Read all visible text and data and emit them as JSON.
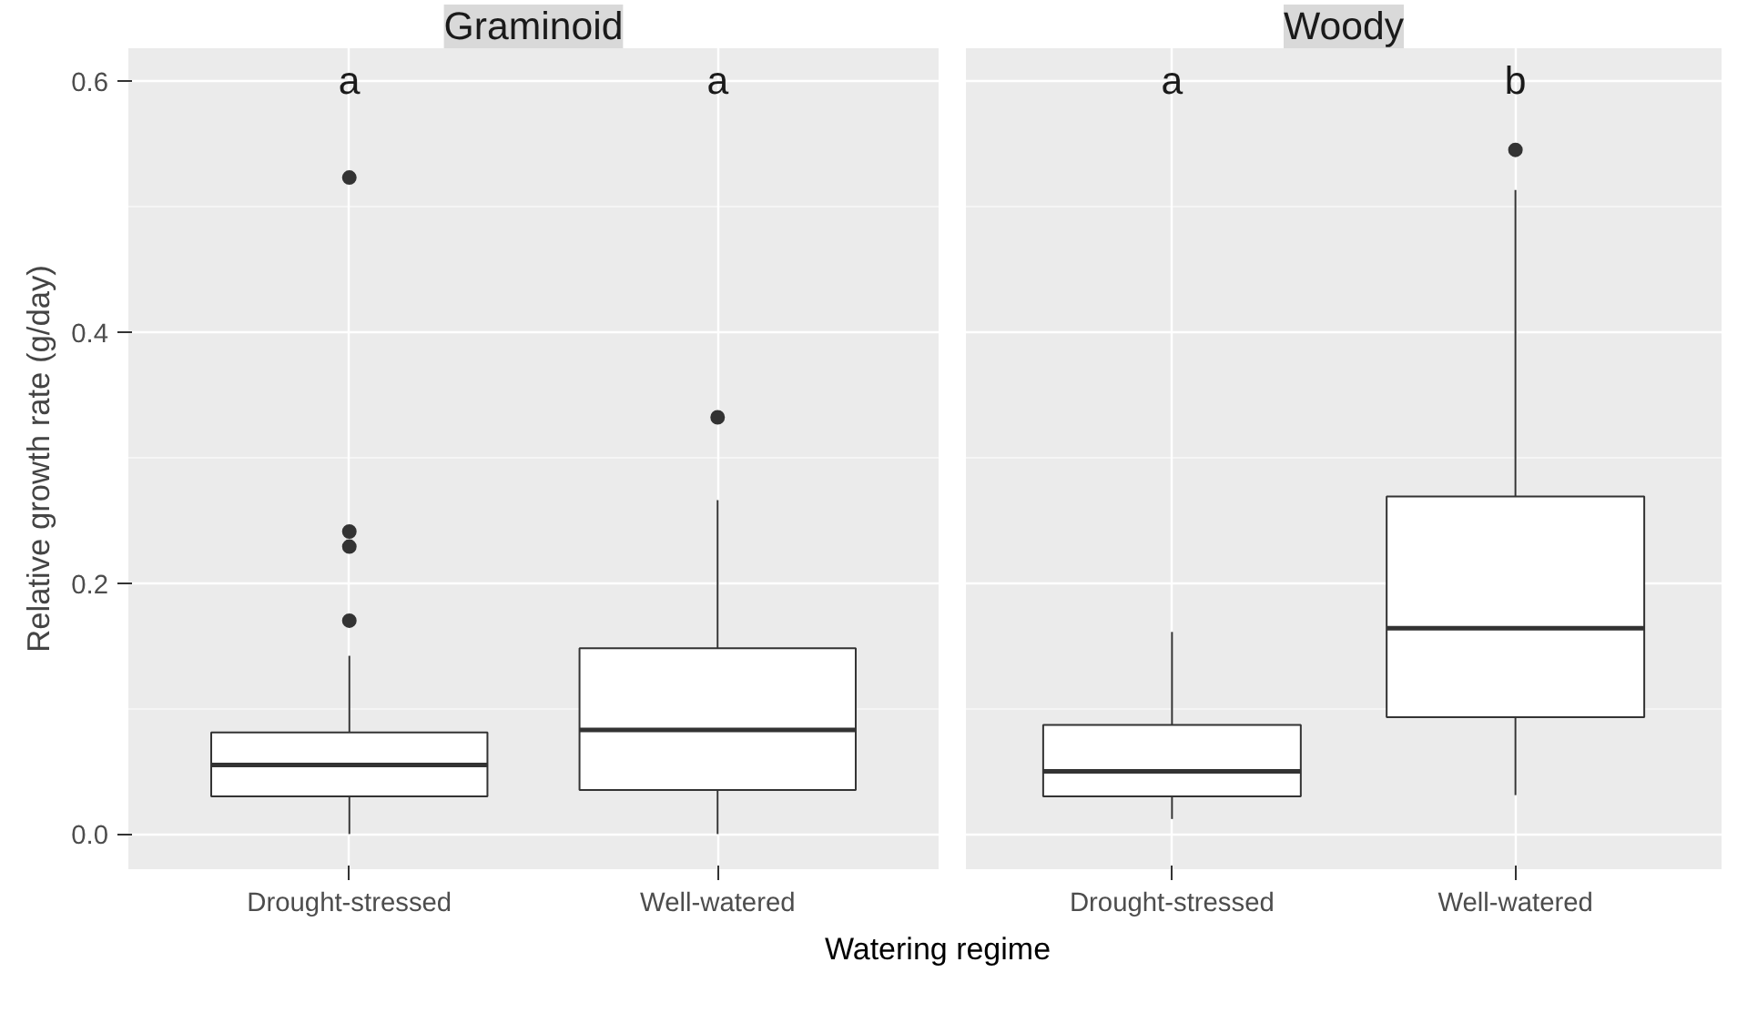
{
  "chart_data": [
    {
      "type": "box",
      "title": "Graminoid",
      "ylabel": "Relative growth rate (g/day)",
      "xlabel": "Watering regime",
      "categories": [
        "Drought-stressed",
        "Well-watered"
      ],
      "boxes": [
        {
          "low": 0.0,
          "q1": 0.03,
          "median": 0.055,
          "q3": 0.081,
          "high": 0.142,
          "outliers": [
            0.17,
            0.229,
            0.241,
            0.523
          ]
        },
        {
          "low": 0.0,
          "q1": 0.035,
          "median": 0.083,
          "q3": 0.148,
          "high": 0.266,
          "outliers": [
            0.332
          ]
        }
      ],
      "annotations": [
        "a",
        "a"
      ],
      "ylim": [
        -0.028,
        0.626
      ],
      "yticks": [
        {
          "value": 0,
          "label": "0.0"
        },
        0.2,
        0.4,
        0.6
      ],
      "grid": true
    },
    {
      "type": "box",
      "title": "Woody",
      "categories": [
        "Drought-stressed",
        "Well-watered"
      ],
      "boxes": [
        {
          "low": 0.012,
          "q1": 0.03,
          "median": 0.05,
          "q3": 0.087,
          "high": 0.161
        },
        {
          "low": 0.031,
          "q1": 0.093,
          "median": 0.164,
          "q3": 0.269,
          "high": 0.513,
          "outliers": [
            0.545
          ]
        }
      ],
      "annotations": [
        "a",
        "b"
      ],
      "ylim": [
        -0.028,
        0.626
      ],
      "yticks": [
        0,
        0.2,
        0.4,
        0.6
      ],
      "grid": true,
      "tick_labels": "x"
    }
  ]
}
